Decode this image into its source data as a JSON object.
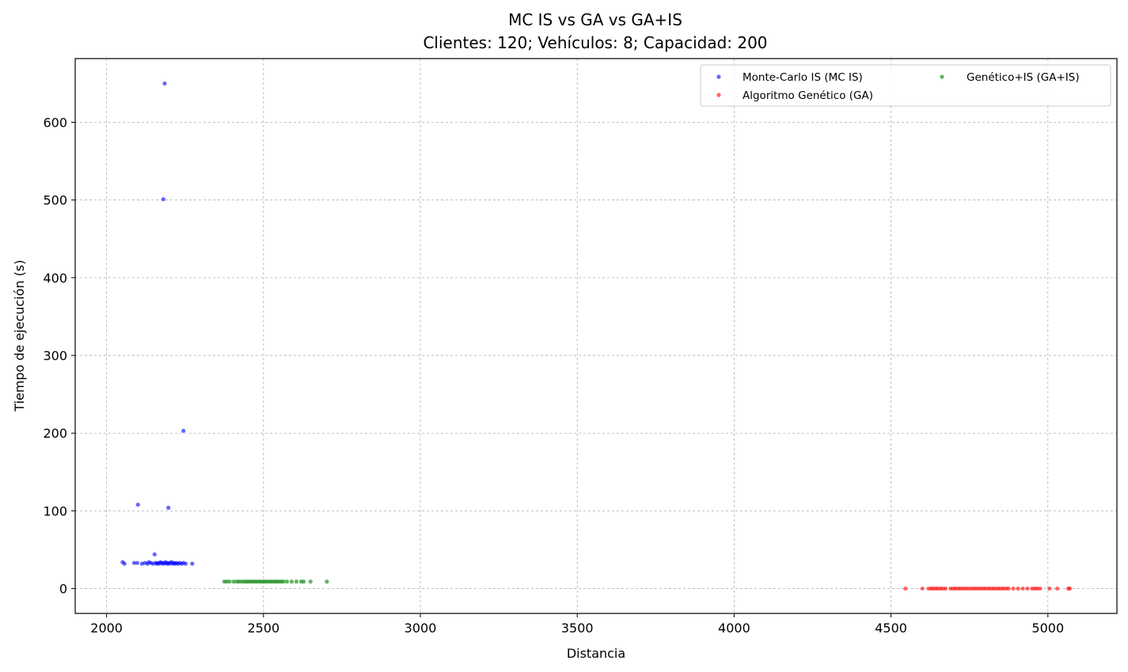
{
  "chart_data": {
    "type": "scatter",
    "title": "MC IS vs GA vs GA+IS",
    "subtitle": "Clientes: 120; Vehículos: 8; Capacidad: 200",
    "xlabel": "Distancia",
    "ylabel": "Tiempo de ejecución (s)",
    "xlim": [
      1900,
      5220
    ],
    "ylim": [
      -32,
      682
    ],
    "xticks": [
      2000,
      2500,
      3000,
      3500,
      4000,
      4500,
      5000
    ],
    "yticks": [
      0,
      100,
      200,
      300,
      400,
      500,
      600
    ],
    "grid": true,
    "legend_position": "top-right",
    "series": [
      {
        "name": "Monte-Carlo IS (MC IS)",
        "color": "#0000ff",
        "points": [
          [
            2185,
            650
          ],
          [
            2181,
            501
          ],
          [
            2245,
            203
          ],
          [
            2100,
            108
          ],
          [
            2197,
            104
          ],
          [
            2153,
            44
          ],
          [
            2051,
            34
          ],
          [
            2057,
            32
          ],
          [
            2088,
            33
          ],
          [
            2098,
            33
          ],
          [
            2113,
            32
          ],
          [
            2122,
            33
          ],
          [
            2130,
            32
          ],
          [
            2135,
            34
          ],
          [
            2141,
            33
          ],
          [
            2148,
            32
          ],
          [
            2156,
            33
          ],
          [
            2160,
            32
          ],
          [
            2164,
            33
          ],
          [
            2168,
            32
          ],
          [
            2172,
            34
          ],
          [
            2176,
            33
          ],
          [
            2180,
            32
          ],
          [
            2184,
            33
          ],
          [
            2188,
            34
          ],
          [
            2191,
            32
          ],
          [
            2195,
            33
          ],
          [
            2199,
            32
          ],
          [
            2203,
            33
          ],
          [
            2207,
            34
          ],
          [
            2211,
            32
          ],
          [
            2215,
            33
          ],
          [
            2219,
            32
          ],
          [
            2223,
            33
          ],
          [
            2228,
            32
          ],
          [
            2233,
            33
          ],
          [
            2239,
            32
          ],
          [
            2245,
            33
          ],
          [
            2252,
            32
          ],
          [
            2273,
            32
          ]
        ]
      },
      {
        "name": "Algoritmo Genético (GA)",
        "color": "#ff0000",
        "points": [
          [
            4546,
            0
          ],
          [
            4600,
            0
          ],
          [
            4620,
            0
          ],
          [
            4628,
            0
          ],
          [
            4635,
            0
          ],
          [
            4643,
            0
          ],
          [
            4650,
            0
          ],
          [
            4658,
            0
          ],
          [
            4666,
            0
          ],
          [
            4674,
            0
          ],
          [
            4690,
            0
          ],
          [
            4698,
            0
          ],
          [
            4706,
            0
          ],
          [
            4714,
            0
          ],
          [
            4722,
            0
          ],
          [
            4730,
            0
          ],
          [
            4738,
            0
          ],
          [
            4746,
            0
          ],
          [
            4755,
            0
          ],
          [
            4763,
            0
          ],
          [
            4771,
            0
          ],
          [
            4779,
            0
          ],
          [
            4787,
            0
          ],
          [
            4795,
            0
          ],
          [
            4803,
            0
          ],
          [
            4811,
            0
          ],
          [
            4819,
            0
          ],
          [
            4827,
            0
          ],
          [
            4835,
            0
          ],
          [
            4843,
            0
          ],
          [
            4851,
            0
          ],
          [
            4859,
            0
          ],
          [
            4867,
            0
          ],
          [
            4875,
            0
          ],
          [
            4890,
            0
          ],
          [
            4905,
            0
          ],
          [
            4920,
            0
          ],
          [
            4935,
            0
          ],
          [
            4950,
            0
          ],
          [
            4958,
            0
          ],
          [
            4966,
            0
          ],
          [
            4975,
            0
          ],
          [
            5005,
            0
          ],
          [
            5030,
            0
          ],
          [
            5065,
            0
          ],
          [
            5070,
            0
          ]
        ]
      },
      {
        "name": "Genético+IS (GA+IS)",
        "color": "#008000",
        "points": [
          [
            2375,
            9
          ],
          [
            2383,
            9
          ],
          [
            2392,
            9
          ],
          [
            2405,
            9
          ],
          [
            2415,
            9
          ],
          [
            2422,
            9
          ],
          [
            2430,
            9
          ],
          [
            2438,
            9
          ],
          [
            2445,
            9
          ],
          [
            2452,
            9
          ],
          [
            2459,
            9
          ],
          [
            2466,
            9
          ],
          [
            2473,
            9
          ],
          [
            2480,
            9
          ],
          [
            2487,
            9
          ],
          [
            2494,
            9
          ],
          [
            2501,
            9
          ],
          [
            2508,
            9
          ],
          [
            2515,
            9
          ],
          [
            2522,
            9
          ],
          [
            2529,
            9
          ],
          [
            2536,
            9
          ],
          [
            2543,
            9
          ],
          [
            2550,
            9
          ],
          [
            2557,
            9
          ],
          [
            2564,
            9
          ],
          [
            2575,
            9
          ],
          [
            2590,
            9
          ],
          [
            2605,
            9
          ],
          [
            2620,
            9
          ],
          [
            2628,
            9
          ],
          [
            2650,
            9
          ],
          [
            2702,
            9
          ]
        ]
      }
    ]
  }
}
